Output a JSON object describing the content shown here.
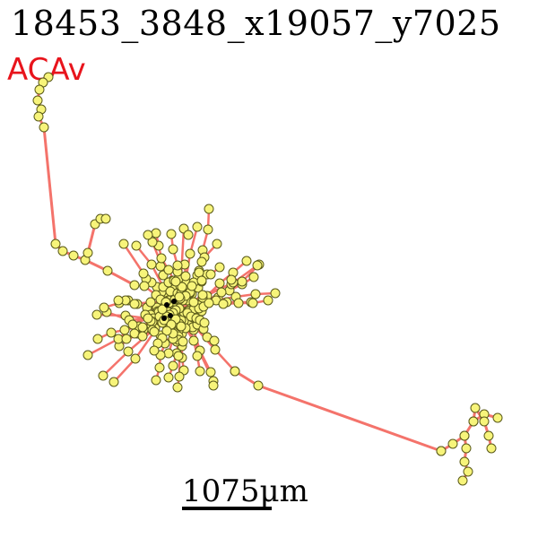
{
  "figure": {
    "title": "18453_3848_x19057_y7025",
    "region_label": "ACAv",
    "scale_label": "1075μm"
  },
  "style": {
    "axon_color": "#f4736b",
    "node_fill": "#f7f47a",
    "node_stroke": "#5a5a1a",
    "soma_color": "#000000",
    "region_color": "#e8141c"
  }
}
